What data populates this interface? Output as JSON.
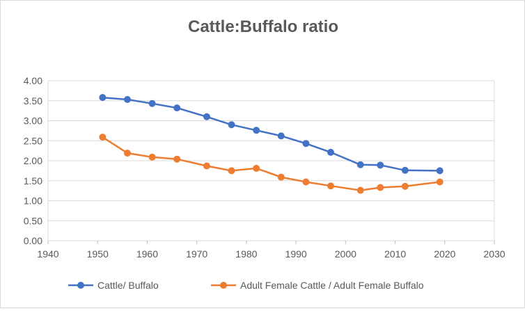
{
  "chart_data": {
    "type": "line",
    "title": "Cattle:Buffalo ratio",
    "xlabel": "",
    "ylabel": "",
    "xlim": [
      1940,
      2030
    ],
    "ylim": [
      0,
      4
    ],
    "x_ticks": [
      1940,
      1950,
      1960,
      1970,
      1980,
      1990,
      2000,
      2010,
      2020,
      2030
    ],
    "y_ticks": [
      0,
      0.5,
      1.0,
      1.5,
      2.0,
      2.5,
      3.0,
      3.5,
      4.0
    ],
    "y_tick_labels": [
      "0.00",
      "0.50",
      "1.00",
      "1.50",
      "2.00",
      "2.50",
      "3.00",
      "3.50",
      "4.00"
    ],
    "grid": "horizontal",
    "legend_position": "bottom",
    "x": [
      1951,
      1956,
      1961,
      1966,
      1972,
      1977,
      1982,
      1987,
      1992,
      1997,
      2003,
      2007,
      2012,
      2019
    ],
    "series": [
      {
        "name": "Cattle/ Buffalo",
        "color": "#4472C4",
        "values": [
          3.58,
          3.53,
          3.43,
          3.32,
          3.1,
          2.9,
          2.76,
          2.62,
          2.43,
          2.21,
          1.9,
          1.89,
          1.76,
          1.75
        ]
      },
      {
        "name": "Adult Female Cattle / Adult Female Buffalo",
        "color": "#ED7D31",
        "values": [
          2.59,
          2.19,
          2.09,
          2.04,
          1.87,
          1.75,
          1.81,
          1.59,
          1.47,
          1.37,
          1.26,
          1.33,
          1.36,
          1.47
        ]
      }
    ]
  }
}
